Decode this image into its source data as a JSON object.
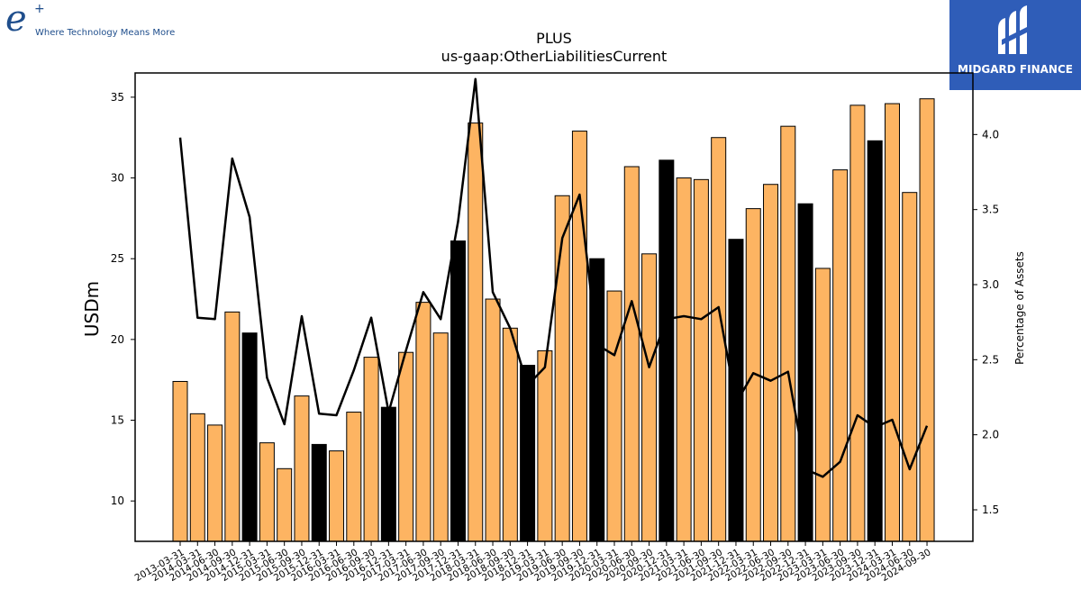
{
  "logos": {
    "left_mark": "e",
    "left_sup": "+",
    "left_tagline": "Where Technology Means More",
    "right_name": "MIDGARD FINANCE",
    "right_icon": "midgard-logo-icon"
  },
  "colors": {
    "bar_default": "#fdb462",
    "bar_highlight": "#000000",
    "line": "#000000",
    "logo_left": "#1f4e8c",
    "logo_right_bg": "#2f5db8"
  },
  "chart_data": {
    "type": "bar",
    "title": "PLUS",
    "subtitle": "us-gaap:OtherLiabilitiesCurrent",
    "ylabel": "USDm",
    "y2label": "Percentage of Assets",
    "ylim": [
      7.5,
      36.5
    ],
    "y2lim": [
      1.29,
      4.41
    ],
    "yticks": [
      10,
      15,
      20,
      25,
      30,
      35
    ],
    "y2ticks": [
      1.5,
      2.0,
      2.5,
      3.0,
      3.5,
      4.0
    ],
    "y2tick_labels": [
      "1.5",
      "2.0",
      "2.5",
      "3.0",
      "3.5",
      "4.0"
    ],
    "categories": [
      "2013-03-31",
      "2014-03-31",
      "2014-06-30",
      "2014-09-30",
      "2014-12-31",
      "2015-03-31",
      "2015-06-30",
      "2015-09-30",
      "2015-12-31",
      "2016-03-31",
      "2016-06-30",
      "2016-09-30",
      "2016-12-31",
      "2017-03-31",
      "2017-06-30",
      "2017-09-30",
      "2017-12-31",
      "2018-03-31",
      "2018-06-30",
      "2018-09-30",
      "2018-12-31",
      "2019-03-31",
      "2019-06-30",
      "2019-09-30",
      "2019-12-31",
      "2020-03-31",
      "2020-06-30",
      "2020-09-30",
      "2020-12-31",
      "2021-03-31",
      "2021-06-30",
      "2021-09-30",
      "2021-12-31",
      "2022-03-31",
      "2022-06-30",
      "2022-09-30",
      "2022-12-31",
      "2023-03-31",
      "2023-06-30",
      "2023-09-30",
      "2023-12-31",
      "2024-03-31",
      "2024-06-30",
      "2024-09-30"
    ],
    "series": [
      {
        "kind": "bar",
        "axis": "left",
        "values": [
          17.4,
          15.4,
          14.7,
          21.7,
          20.4,
          13.6,
          12.0,
          16.5,
          13.5,
          13.1,
          15.5,
          18.9,
          15.8,
          19.2,
          22.3,
          20.4,
          26.1,
          33.4,
          22.5,
          20.7,
          18.4,
          19.3,
          28.9,
          32.9,
          25.0,
          23.0,
          30.7,
          25.3,
          31.1,
          30.0,
          29.9,
          32.5,
          26.2,
          28.1,
          29.6,
          33.2,
          28.4,
          24.4,
          30.5,
          34.5,
          32.3,
          34.6,
          29.1,
          34.9
        ],
        "highlight_index": [
          4,
          8,
          12,
          16,
          20,
          24,
          28,
          32,
          36,
          40
        ]
      },
      {
        "kind": "line",
        "axis": "right",
        "values": [
          3.98,
          2.78,
          2.77,
          3.84,
          3.45,
          2.38,
          2.07,
          2.79,
          2.14,
          2.13,
          2.43,
          2.78,
          2.15,
          2.56,
          2.95,
          2.77,
          3.42,
          4.37,
          2.95,
          2.71,
          2.33,
          2.45,
          3.31,
          3.6,
          2.6,
          2.53,
          2.89,
          2.45,
          2.77,
          2.79,
          2.77,
          2.85,
          2.21,
          2.41,
          2.36,
          2.42,
          1.77,
          1.72,
          1.82,
          2.13,
          2.05,
          2.1,
          1.77,
          2.06
        ]
      }
    ]
  }
}
